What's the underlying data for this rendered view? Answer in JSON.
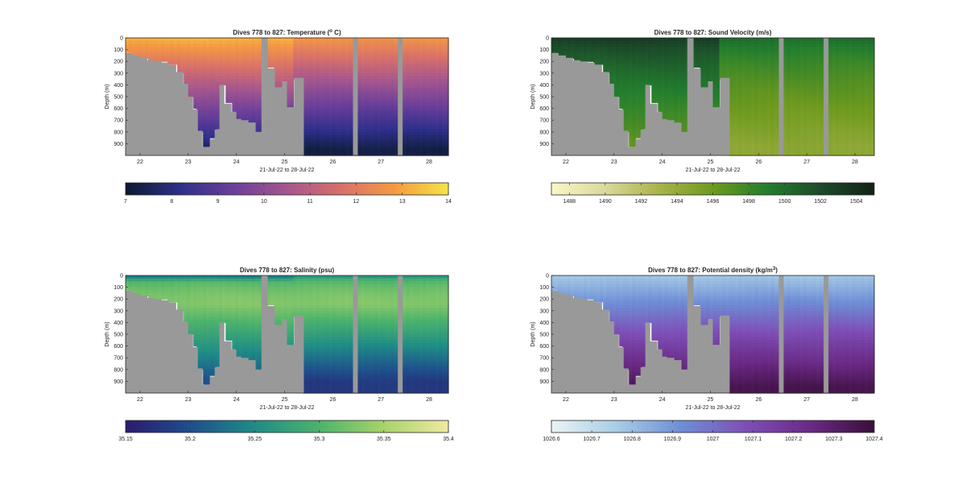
{
  "figure": {
    "date_range_label": "21-Jul-22 to 28-Jul-22"
  },
  "chart_data": [
    {
      "type": "heatmap",
      "title": "Dives 778 to 827: Temperature (° C)",
      "title_parts": [
        "Dives 778 to 827: Temperature (",
        "o",
        " C)"
      ],
      "xlabel": "21-Jul-22 to 28-Jul-22",
      "ylabel": "Depth (m)",
      "xlim": [
        21.7,
        28.4
      ],
      "ylim": [
        1000,
        0
      ],
      "x_ticks": [
        22,
        23,
        24,
        25,
        26,
        27,
        28
      ],
      "y_ticks": [
        0,
        100,
        200,
        300,
        400,
        500,
        600,
        700,
        800,
        900
      ],
      "colormap": [
        "#0b1a2e",
        "#2d2f8a",
        "#6a3f9a",
        "#a5568f",
        "#d8706a",
        "#f59a42",
        "#f3e547"
      ],
      "colorbar": {
        "range": [
          7,
          14
        ],
        "ticks": [
          7,
          8,
          9,
          10,
          11,
          12,
          13,
          14
        ]
      },
      "surface_value": 13.8,
      "deep_value": 7.6,
      "surface_value_east": 13.2,
      "deep_value_east": 7.3
    },
    {
      "type": "heatmap",
      "title": "Dives 778 to 827: Sound Velocity (m/s)",
      "xlabel": "21-Jul-22 to 28-Jul-22",
      "ylabel": "Depth (m)",
      "xlim": [
        21.7,
        28.4
      ],
      "ylim": [
        1000,
        0
      ],
      "x_ticks": [
        22,
        23,
        24,
        25,
        26,
        27,
        28
      ],
      "y_ticks": [
        0,
        100,
        200,
        300,
        400,
        500,
        600,
        700,
        800,
        900
      ],
      "colormap": [
        "#fbf7c6",
        "#d9d99a",
        "#a9b34a",
        "#6e9a1e",
        "#237e2e",
        "#1c4b2a",
        "#122216"
      ],
      "colorbar": {
        "range": [
          1487,
          1505
        ],
        "ticks": [
          1488,
          1490,
          1492,
          1494,
          1496,
          1498,
          1500,
          1502,
          1504
        ]
      },
      "surface_value": 1503,
      "deep_value": 1496.5,
      "surface_value_east": 1500,
      "deep_value_east": 1494.5
    },
    {
      "type": "heatmap",
      "title": "Dives 778 to 827: Salinity (psu)",
      "xlabel": "21-Jul-22 to 28-Jul-22",
      "ylabel": "Depth (m)",
      "xlim": [
        21.7,
        28.4
      ],
      "ylim": [
        1000,
        0
      ],
      "x_ticks": [
        22,
        23,
        24,
        25,
        26,
        27,
        28
      ],
      "y_ticks": [
        0,
        100,
        200,
        300,
        400,
        500,
        600,
        700,
        800,
        900
      ],
      "colormap": [
        "#2b1a6e",
        "#1f4e8c",
        "#1f8c87",
        "#4cb36b",
        "#a8d36a",
        "#f1e9a0"
      ],
      "colorbar": {
        "range": [
          35.15,
          35.4
        ],
        "ticks": [
          35.15,
          35.2,
          35.25,
          35.3,
          35.35,
          35.4
        ]
      },
      "surface_value": 35.22,
      "deep_value": 35.2,
      "surface_value_east": 35.25,
      "deep_value_east": 35.18,
      "mid_value": 35.33
    },
    {
      "type": "heatmap",
      "title": "Dives 778 to 827: Potential density (kg/m³)",
      "title_parts": [
        "Dives 778 to 827: Potential density (kg/m",
        "3",
        ")"
      ],
      "xlabel": "21-Jul-22 to 28-Jul-22",
      "ylabel": "Depth (m)",
      "xlim": [
        21.7,
        28.4
      ],
      "ylim": [
        1000,
        0
      ],
      "x_ticks": [
        22,
        23,
        24,
        25,
        26,
        27,
        28
      ],
      "y_ticks": [
        0,
        100,
        200,
        300,
        400,
        500,
        600,
        700,
        800,
        900
      ],
      "colormap": [
        "#e9f4f5",
        "#a9cde6",
        "#6e8fd6",
        "#7e4fb7",
        "#6a2a86",
        "#3a0e3a"
      ],
      "colorbar": {
        "range": [
          1026.6,
          1027.4
        ],
        "ticks": [
          "1026.6",
          "1026.7",
          "1026.8",
          "1026.9",
          "1027",
          "1027.1",
          "1027.2",
          "1027.3",
          "1027.4"
        ]
      },
      "surface_value": 1026.72,
      "deep_value": 1027.35,
      "surface_value_east": 1026.72,
      "deep_value_east": 1027.36
    }
  ],
  "bathymetry": {
    "x": [
      21.7,
      21.85,
      22.0,
      22.15,
      22.3,
      22.45,
      22.6,
      22.75,
      22.9,
      23.0,
      23.1,
      23.2,
      23.3,
      23.45,
      23.55,
      23.65,
      23.75,
      23.9,
      24.0,
      24.1,
      24.25,
      24.4,
      24.55,
      24.65,
      24.8,
      24.95,
      25.05,
      25.2,
      25.4
    ],
    "depth": [
      130,
      150,
      170,
      190,
      200,
      210,
      230,
      290,
      390,
      500,
      610,
      790,
      930,
      860,
      780,
      400,
      560,
      630,
      690,
      700,
      720,
      800,
      800,
      260,
      420,
      370,
      590,
      340,
      1000
    ]
  },
  "gaps": [
    [
      24.52,
      24.65
    ],
    [
      26.42,
      26.52
    ],
    [
      27.35,
      27.45
    ]
  ]
}
